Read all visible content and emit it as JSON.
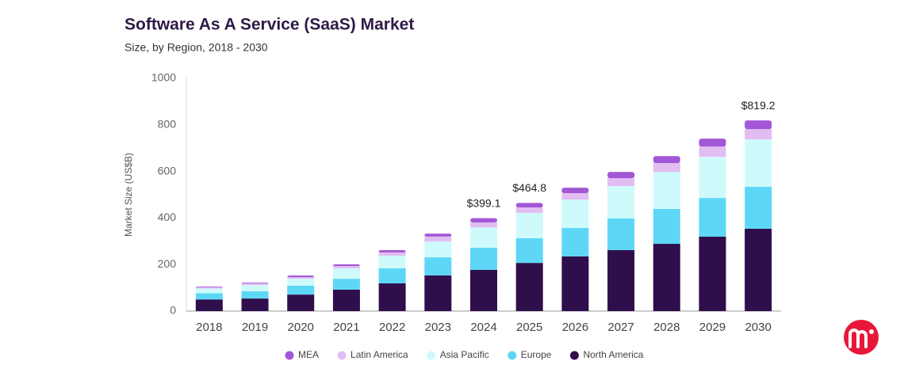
{
  "chart_data": {
    "type": "stacked_bar",
    "title": "Software As A Service (SaaS) Market",
    "subtitle": "Size, by Region, 2018 - 2030",
    "y_label": "Market Size (US$B)",
    "categories": [
      "2018",
      "2019",
      "2020",
      "2021",
      "2022",
      "2023",
      "2024",
      "2025",
      "2026",
      "2027",
      "2028",
      "2029",
      "2030"
    ],
    "series": [
      {
        "name": "MEA",
        "color": "#a257d6",
        "values": [
          3,
          3,
          7,
          7,
          10,
          13,
          18,
          19.8,
          23,
          27,
          30,
          34,
          37.2
        ]
      },
      {
        "name": "Latin America",
        "color": "#e2bdf2",
        "values": [
          5,
          7,
          7,
          10,
          14,
          21,
          21,
          23,
          28,
          34,
          38,
          44,
          44
        ]
      },
      {
        "name": "Asia Pacific",
        "color": "#cffafc",
        "values": [
          20,
          27,
          30,
          45,
          54,
          68,
          88,
          109,
          122,
          139,
          159,
          177,
          204
        ]
      },
      {
        "name": "Europe",
        "color": "#5dd7f5",
        "values": [
          27,
          31,
          38,
          47,
          65,
          78,
          95,
          106,
          122,
          136,
          150,
          166,
          180
        ]
      },
      {
        "name": "North America",
        "color": "#2f0e4c",
        "values": [
          50,
          54,
          71,
          92,
          119,
          153,
          177.1,
          207,
          235,
          262,
          289,
          320,
          354
        ]
      }
    ],
    "annotations": [
      {
        "category": "2024",
        "value": 399.1,
        "label": "$399.1"
      },
      {
        "category": "2025",
        "value": 464.8,
        "label": "$464.8"
      },
      {
        "category": "2030",
        "value": 819.2,
        "label": "$819.2"
      }
    ],
    "ylim": [
      0,
      1000
    ],
    "yticks": [
      0,
      200,
      400,
      600,
      800,
      1000
    ],
    "grid": false
  }
}
